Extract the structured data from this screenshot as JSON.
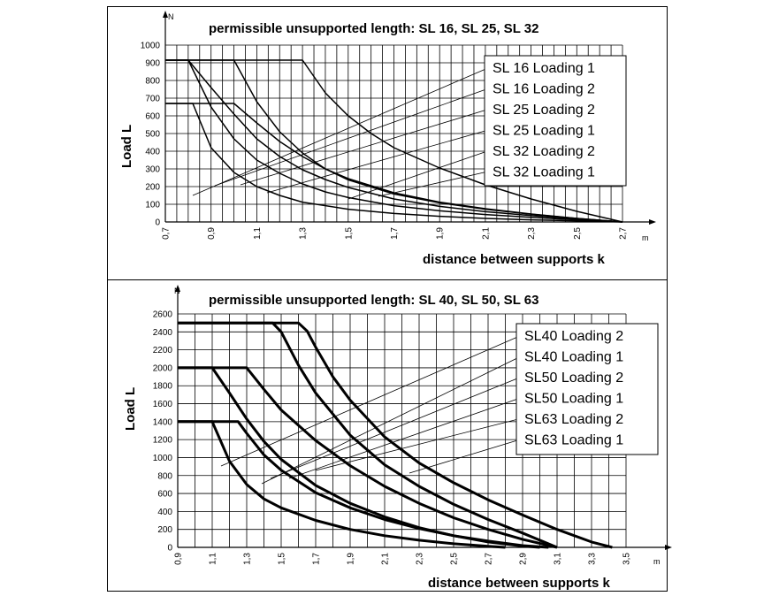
{
  "chart_data": [
    {
      "type": "line",
      "title": "permissible unsupported length: SL 16, SL 25, SL 32",
      "xlabel": "distance between supports k",
      "ylabel": "Load L",
      "x_unit": "m",
      "y_unit": "N",
      "xlim": [
        0.7,
        2.7
      ],
      "ylim": [
        0,
        1000
      ],
      "x_ticks": [
        "0,7",
        "0,9",
        "1,1",
        "1,3",
        "1,5",
        "1,7",
        "1,9",
        "2,1",
        "2,3",
        "2,5",
        "2,7"
      ],
      "y_ticks": [
        "0",
        "100",
        "200",
        "300",
        "400",
        "500",
        "600",
        "700",
        "800",
        "900",
        "1000"
      ],
      "grid": true,
      "series": [
        {
          "name": "SL 16 Loading 1",
          "x": [
            0.7,
            0.82,
            0.9,
            1.0,
            1.1,
            1.2,
            1.3,
            1.5,
            1.7,
            1.9,
            2.1,
            2.3,
            2.5,
            2.7
          ],
          "y": [
            670,
            670,
            420,
            280,
            200,
            150,
            112,
            72,
            48,
            32,
            20,
            12,
            6,
            0
          ]
        },
        {
          "name": "SL 16 Loading 2",
          "x": [
            0.7,
            1.0,
            1.1,
            1.2,
            1.3,
            1.4,
            1.5,
            1.7,
            1.9,
            2.1,
            2.3,
            2.5,
            2.7
          ],
          "y": [
            670,
            670,
            560,
            455,
            370,
            300,
            245,
            165,
            112,
            75,
            45,
            20,
            0
          ]
        },
        {
          "name": "SL 25 Loading 2",
          "x": [
            0.7,
            0.8,
            0.9,
            1.0,
            1.1,
            1.2,
            1.3,
            1.4,
            1.5,
            1.7,
            1.9,
            2.1,
            2.3,
            2.5,
            2.7
          ],
          "y": [
            915,
            915,
            650,
            470,
            350,
            275,
            215,
            170,
            138,
            92,
            63,
            42,
            26,
            12,
            0
          ]
        },
        {
          "name": "SL 25 Loading 1",
          "x": [
            0.7,
            1.0,
            1.1,
            1.2,
            1.3,
            1.4,
            1.5,
            1.7,
            1.9,
            2.1,
            2.3,
            2.5,
            2.7
          ],
          "y": [
            915,
            915,
            680,
            510,
            390,
            300,
            238,
            158,
            108,
            72,
            44,
            20,
            0
          ]
        },
        {
          "name": "SL 32 Loading 2",
          "x": [
            0.7,
            0.8,
            0.9,
            1.0,
            1.1,
            1.2,
            1.3,
            1.4,
            1.5,
            1.7,
            1.9,
            2.1,
            2.3,
            2.5,
            2.7
          ],
          "y": [
            915,
            915,
            760,
            610,
            470,
            370,
            295,
            240,
            195,
            130,
            88,
            58,
            36,
            16,
            0
          ]
        },
        {
          "name": "SL 32 Loading 1",
          "x": [
            0.7,
            1.3,
            1.4,
            1.5,
            1.6,
            1.7,
            1.9,
            2.1,
            2.3,
            2.5,
            2.7
          ],
          "y": [
            915,
            915,
            730,
            600,
            500,
            420,
            305,
            210,
            130,
            60,
            0
          ]
        }
      ]
    },
    {
      "type": "line",
      "title": "permissible unsupported length: SL 40, SL 50, SL 63",
      "xlabel": "distance between supports k",
      "ylabel": "Load L",
      "x_unit": "m",
      "y_unit": "N",
      "xlim": [
        0.9,
        3.5
      ],
      "ylim": [
        0,
        2600
      ],
      "x_ticks": [
        "0,9",
        "1,1",
        "1,3",
        "1,5",
        "1,7",
        "1,9",
        "2,1",
        "2,3",
        "2,5",
        "2,7",
        "2,9",
        "3,1",
        "3,3",
        "3,5"
      ],
      "y_ticks": [
        "0",
        "200",
        "400",
        "600",
        "800",
        "1000",
        "1200",
        "1400",
        "1600",
        "1800",
        "2000",
        "2200",
        "2400",
        "2600"
      ],
      "grid": true,
      "series": [
        {
          "name": "SL40 Loading 2",
          "x": [
            0.9,
            1.1,
            1.2,
            1.3,
            1.4,
            1.5,
            1.7,
            1.9,
            2.1,
            2.3,
            2.5,
            2.7,
            2.8
          ],
          "y": [
            1400,
            1400,
            960,
            700,
            540,
            440,
            300,
            200,
            130,
            80,
            40,
            12,
            0
          ]
        },
        {
          "name": "SL40 Loading 1",
          "x": [
            0.9,
            1.25,
            1.3,
            1.4,
            1.5,
            1.7,
            1.9,
            2.1,
            2.3,
            2.5,
            2.7,
            2.9,
            3.05
          ],
          "y": [
            1400,
            1400,
            1270,
            1030,
            860,
            610,
            440,
            310,
            210,
            130,
            70,
            20,
            0
          ]
        },
        {
          "name": "SL50 Loading 2",
          "x": [
            0.9,
            1.1,
            1.2,
            1.3,
            1.4,
            1.5,
            1.7,
            1.9,
            2.1,
            2.3,
            2.5,
            2.7,
            2.9,
            3.0
          ],
          "y": [
            2000,
            2000,
            1720,
            1430,
            1180,
            980,
            690,
            490,
            340,
            220,
            130,
            60,
            15,
            0
          ]
        },
        {
          "name": "SL50 Loading 1",
          "x": [
            0.9,
            1.3,
            1.4,
            1.5,
            1.7,
            1.9,
            2.1,
            2.3,
            2.5,
            2.7,
            2.9,
            3.1
          ],
          "y": [
            2000,
            2000,
            1760,
            1530,
            1190,
            910,
            680,
            490,
            330,
            200,
            90,
            0
          ]
        },
        {
          "name": "SL63 Loading 2",
          "x": [
            0.9,
            1.45,
            1.5,
            1.6,
            1.7,
            1.9,
            2.1,
            2.3,
            2.5,
            2.7,
            2.9,
            3.1
          ],
          "y": [
            2500,
            2500,
            2400,
            2030,
            1720,
            1250,
            920,
            680,
            480,
            310,
            160,
            0
          ]
        },
        {
          "name": "SL63 Loading 1",
          "x": [
            0.9,
            1.6,
            1.65,
            1.7,
            1.8,
            1.9,
            2.1,
            2.3,
            2.5,
            2.7,
            2.9,
            3.1,
            3.3,
            3.42
          ],
          "y": [
            2500,
            2500,
            2410,
            2230,
            1900,
            1640,
            1230,
            940,
            720,
            530,
            360,
            200,
            60,
            0
          ]
        }
      ]
    }
  ]
}
